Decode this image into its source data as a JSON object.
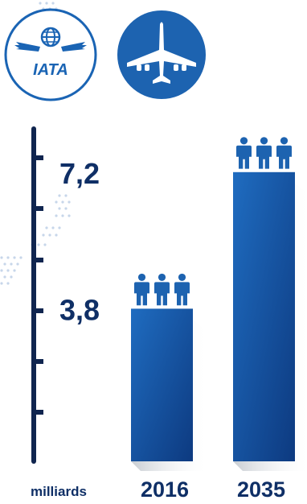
{
  "logo": {
    "text": "IATA"
  },
  "colors": {
    "bar_top": "#1f6cc0",
    "bar_bottom": "#0d3a80",
    "axis": "#10254f",
    "label": "#0f2f66",
    "accent": "#1d63b0"
  },
  "icons": {
    "logo": "iata-globe-logo-icon",
    "plane": "airplane-icon",
    "people": "passengers-icon"
  },
  "chart_data": {
    "type": "bar",
    "categories": [
      "2016",
      "2035"
    ],
    "values": [
      3.8,
      7.2
    ],
    "value_labels": [
      "3,8",
      "7,2"
    ],
    "unit": "milliards",
    "ylim": [
      0,
      9
    ],
    "grid": false,
    "legend": "none"
  }
}
